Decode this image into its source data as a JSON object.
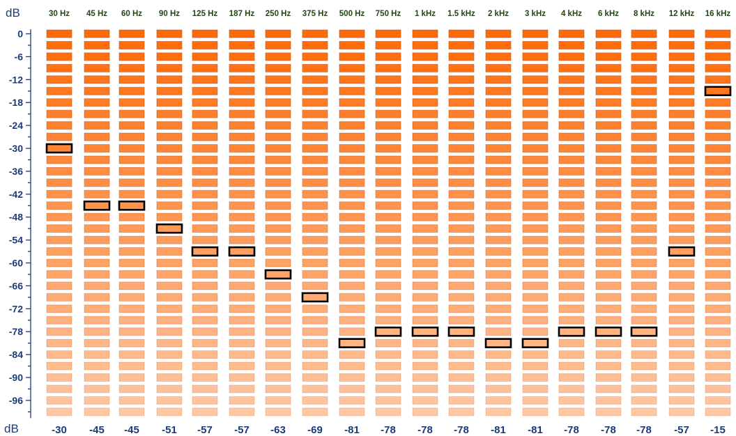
{
  "chart_data": {
    "type": "bar",
    "categories": [
      "30 Hz",
      "45 Hz",
      "60 Hz",
      "90 Hz",
      "125 Hz",
      "187 Hz",
      "250 Hz",
      "375 Hz",
      "500 Hz",
      "750 Hz",
      "1 kHz",
      "1.5 kHz",
      "2 kHz",
      "3 kHz",
      "4 kHz",
      "6 kHz",
      "8 kHz",
      "12 kHz",
      "16 kHz"
    ],
    "values": [
      -30,
      -45,
      -45,
      -51,
      -57,
      -57,
      -63,
      -69,
      -81,
      -78,
      -78,
      -78,
      -81,
      -81,
      -78,
      -78,
      -78,
      -57,
      -15
    ],
    "ylabel": "dB",
    "xlabel": "dB",
    "y_ticks": [
      "0",
      "-6",
      "-12",
      "-18",
      "-24",
      "-30",
      "-36",
      "-42",
      "-48",
      "-54",
      "-60",
      "-66",
      "-72",
      "-78",
      "-84",
      "-90",
      "-96"
    ],
    "ylim": [
      -99,
      0
    ],
    "segment_step_db": 3,
    "colors": {
      "top": "#ff6a08",
      "bottom": "#ffc7a2",
      "segment_border": "#aa4a16",
      "marker_border": "#000000",
      "freq_text": "#234512",
      "axis_text": "#1c3a7a"
    }
  }
}
